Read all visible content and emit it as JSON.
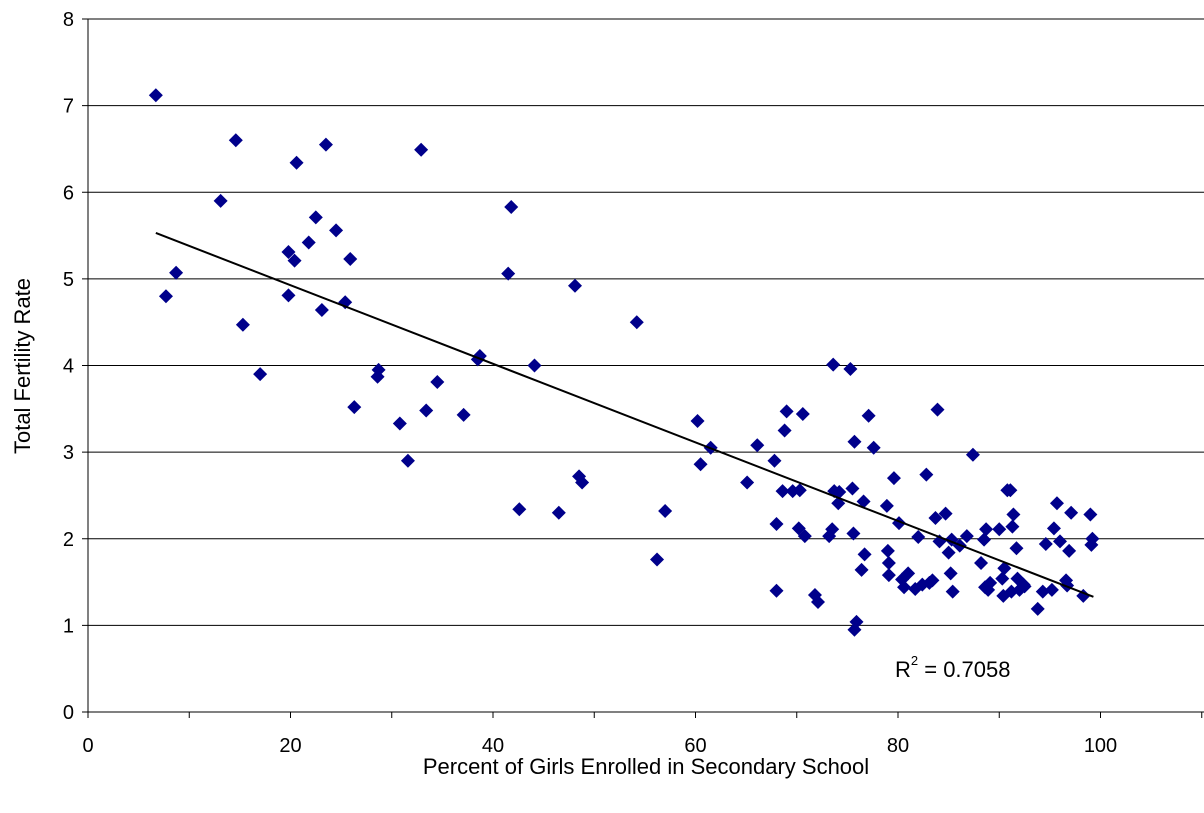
{
  "chart_data": {
    "type": "scatter",
    "title": "",
    "xlabel": "Percent of Girls Enrolled in Secondary School",
    "ylabel": "Total Fertility Rate",
    "xlim": [
      0,
      110
    ],
    "ylim": [
      0,
      8
    ],
    "x_ticks": [
      0,
      20,
      40,
      60,
      80,
      100
    ],
    "y_ticks": [
      0,
      1,
      2,
      3,
      4,
      5,
      6,
      7,
      8
    ],
    "grid": "horizontal",
    "marker": "diamond",
    "marker_color": "#00008B",
    "trendline": {
      "type": "linear",
      "x": [
        6.7,
        99.3
      ],
      "y": [
        5.53,
        1.33
      ],
      "color": "#000000"
    },
    "annotation": {
      "r_label": "R",
      "r_sup": "2",
      "r_value": " = 0.7058"
    },
    "points": [
      [
        6.7,
        7.12
      ],
      [
        7.7,
        4.8
      ],
      [
        8.7,
        5.07
      ],
      [
        13.1,
        5.9
      ],
      [
        14.6,
        6.6
      ],
      [
        15.3,
        4.47
      ],
      [
        17,
        3.9
      ],
      [
        19.8,
        4.81
      ],
      [
        19.8,
        5.31
      ],
      [
        20.4,
        5.21
      ],
      [
        20.6,
        6.34
      ],
      [
        21.8,
        5.42
      ],
      [
        22.5,
        5.71
      ],
      [
        23.1,
        4.64
      ],
      [
        23.5,
        6.55
      ],
      [
        24.5,
        5.56
      ],
      [
        25.4,
        4.73
      ],
      [
        25.9,
        5.23
      ],
      [
        26.3,
        3.52
      ],
      [
        28.6,
        3.87
      ],
      [
        28.7,
        3.95
      ],
      [
        30.8,
        3.33
      ],
      [
        31.6,
        2.9
      ],
      [
        32.9,
        6.49
      ],
      [
        33.4,
        3.48
      ],
      [
        34.5,
        3.81
      ],
      [
        37.1,
        3.43
      ],
      [
        38.5,
        4.07
      ],
      [
        38.7,
        4.11
      ],
      [
        41.5,
        5.06
      ],
      [
        41.8,
        5.83
      ],
      [
        42.6,
        2.34
      ],
      [
        44.1,
        4.0
      ],
      [
        46.5,
        2.3
      ],
      [
        48.1,
        4.92
      ],
      [
        48.5,
        2.72
      ],
      [
        48.8,
        2.65
      ],
      [
        54.2,
        4.5
      ],
      [
        56.2,
        1.76
      ],
      [
        57,
        2.32
      ],
      [
        60.2,
        3.36
      ],
      [
        60.5,
        2.86
      ],
      [
        61.5,
        3.05
      ],
      [
        65.1,
        2.65
      ],
      [
        66.1,
        3.08
      ],
      [
        67.8,
        2.9
      ],
      [
        68,
        2.17
      ],
      [
        68,
        1.4
      ],
      [
        68.6,
        2.55
      ],
      [
        68.8,
        3.25
      ],
      [
        69,
        3.47
      ],
      [
        69.6,
        2.55
      ],
      [
        70.2,
        2.12
      ],
      [
        70.3,
        2.56
      ],
      [
        70.6,
        3.44
      ],
      [
        70.8,
        2.03
      ],
      [
        71.8,
        1.35
      ],
      [
        72.1,
        1.27
      ],
      [
        73.2,
        2.03
      ],
      [
        73.5,
        2.11
      ],
      [
        73.6,
        4.01
      ],
      [
        73.7,
        2.55
      ],
      [
        74.1,
        2.41
      ],
      [
        74.2,
        2.54
      ],
      [
        75.3,
        3.96
      ],
      [
        75.5,
        2.58
      ],
      [
        75.6,
        2.06
      ],
      [
        75.7,
        3.12
      ],
      [
        75.7,
        0.95
      ],
      [
        75.9,
        1.04
      ],
      [
        76.4,
        1.64
      ],
      [
        76.6,
        2.43
      ],
      [
        76.7,
        1.82
      ],
      [
        77.1,
        3.42
      ],
      [
        77.6,
        3.05
      ],
      [
        78.9,
        2.38
      ],
      [
        79,
        1.86
      ],
      [
        79.1,
        1.72
      ],
      [
        79.1,
        1.58
      ],
      [
        79.6,
        2.7
      ],
      [
        80.1,
        2.18
      ],
      [
        80.4,
        1.53
      ],
      [
        80.6,
        1.44
      ],
      [
        81,
        1.6
      ],
      [
        81.7,
        1.42
      ],
      [
        82,
        2.02
      ],
      [
        82.4,
        1.47
      ],
      [
        82.8,
        2.74
      ],
      [
        83.1,
        1.49
      ],
      [
        83.4,
        1.52
      ],
      [
        83.7,
        2.24
      ],
      [
        83.9,
        3.49
      ],
      [
        84.1,
        1.97
      ],
      [
        84.7,
        2.29
      ],
      [
        85,
        1.84
      ],
      [
        85.2,
        1.6
      ],
      [
        85.3,
        1.99
      ],
      [
        85.4,
        1.39
      ],
      [
        86.1,
        1.92
      ],
      [
        86.8,
        2.03
      ],
      [
        87.4,
        2.97
      ],
      [
        88.2,
        1.72
      ],
      [
        88.5,
        1.99
      ],
      [
        88.6,
        1.44
      ],
      [
        88.7,
        2.11
      ],
      [
        88.9,
        1.41
      ],
      [
        89.1,
        1.49
      ],
      [
        90,
        2.11
      ],
      [
        90.3,
        1.54
      ],
      [
        90.4,
        1.34
      ],
      [
        90.5,
        1.66
      ],
      [
        90.8,
        2.56
      ],
      [
        91.1,
        2.56
      ],
      [
        91.2,
        1.39
      ],
      [
        91.3,
        2.14
      ],
      [
        91.4,
        2.28
      ],
      [
        91.7,
        1.89
      ],
      [
        91.8,
        1.54
      ],
      [
        92,
        1.41
      ],
      [
        92.4,
        1.47
      ],
      [
        92.5,
        1.45
      ],
      [
        93.8,
        1.19
      ],
      [
        94.3,
        1.39
      ],
      [
        94.6,
        1.94
      ],
      [
        95.2,
        1.41
      ],
      [
        95.4,
        2.12
      ],
      [
        95.7,
        2.41
      ],
      [
        96,
        1.97
      ],
      [
        96.6,
        1.52
      ],
      [
        96.7,
        1.46
      ],
      [
        96.9,
        1.86
      ],
      [
        97.1,
        2.3
      ],
      [
        98.3,
        1.34
      ],
      [
        99,
        2.28
      ],
      [
        99.1,
        1.93
      ],
      [
        99.2,
        2.0
      ]
    ]
  }
}
